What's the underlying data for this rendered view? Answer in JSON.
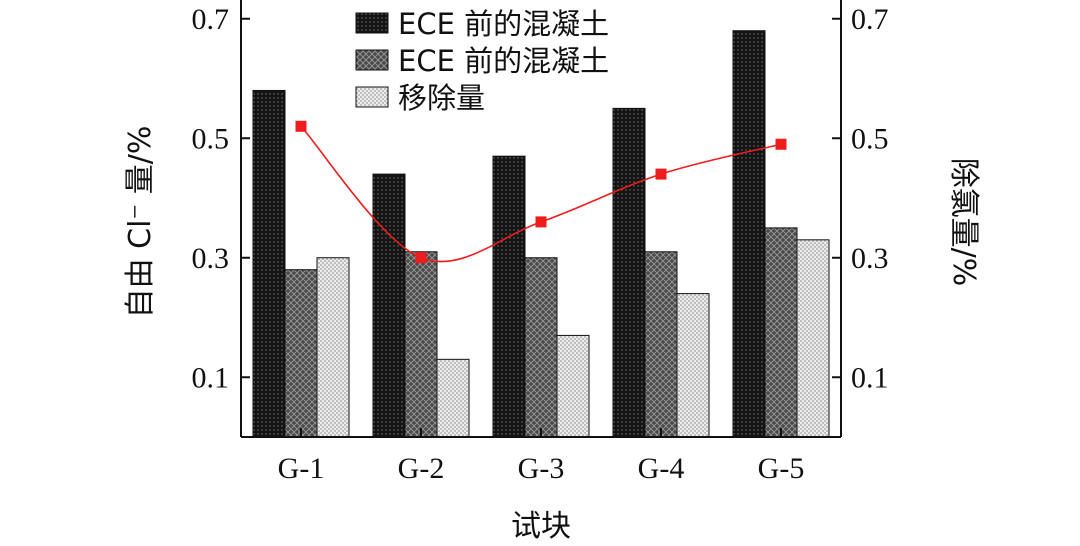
{
  "chart_data": {
    "type": "bar",
    "categories": [
      "G-1",
      "G-2",
      "G-3",
      "G-4",
      "G-5"
    ],
    "series": [
      {
        "name": "ECE 前的混凝土",
        "kind": "bar",
        "axis": "left",
        "values": [
          0.58,
          0.44,
          0.47,
          0.55,
          0.68
        ],
        "color": "#141414",
        "pattern": "dense-dots"
      },
      {
        "name": "ECE 前的混凝土",
        "kind": "bar",
        "axis": "left",
        "values": [
          0.28,
          0.31,
          0.3,
          0.31,
          0.35
        ],
        "color": "#555555",
        "pattern": "crosshatch"
      },
      {
        "name": "移除量",
        "kind": "bar",
        "axis": "left",
        "values": [
          0.3,
          0.13,
          0.17,
          0.24,
          0.33
        ],
        "color": "#dddddd",
        "pattern": "light-dots"
      },
      {
        "name": "",
        "kind": "line",
        "axis": "right",
        "values": [
          0.52,
          0.3,
          0.36,
          0.44,
          0.49
        ],
        "color": "#ee1c1c",
        "marker": "square",
        "smooth": true
      }
    ],
    "xlabel": "试块",
    "ylabel": "自由 Cl⁻ 量/%",
    "y2label": "除氯量/%",
    "ylim": [
      0.0,
      0.72
    ],
    "y2lim": [
      0.0,
      0.72
    ],
    "yticks": [
      "0.1",
      "0.3",
      "0.5",
      "0.7"
    ],
    "y2ticks": [
      "0.1",
      "0.3",
      "0.5",
      "0.7"
    ],
    "legend_position": "top-center",
    "grid": false
  }
}
